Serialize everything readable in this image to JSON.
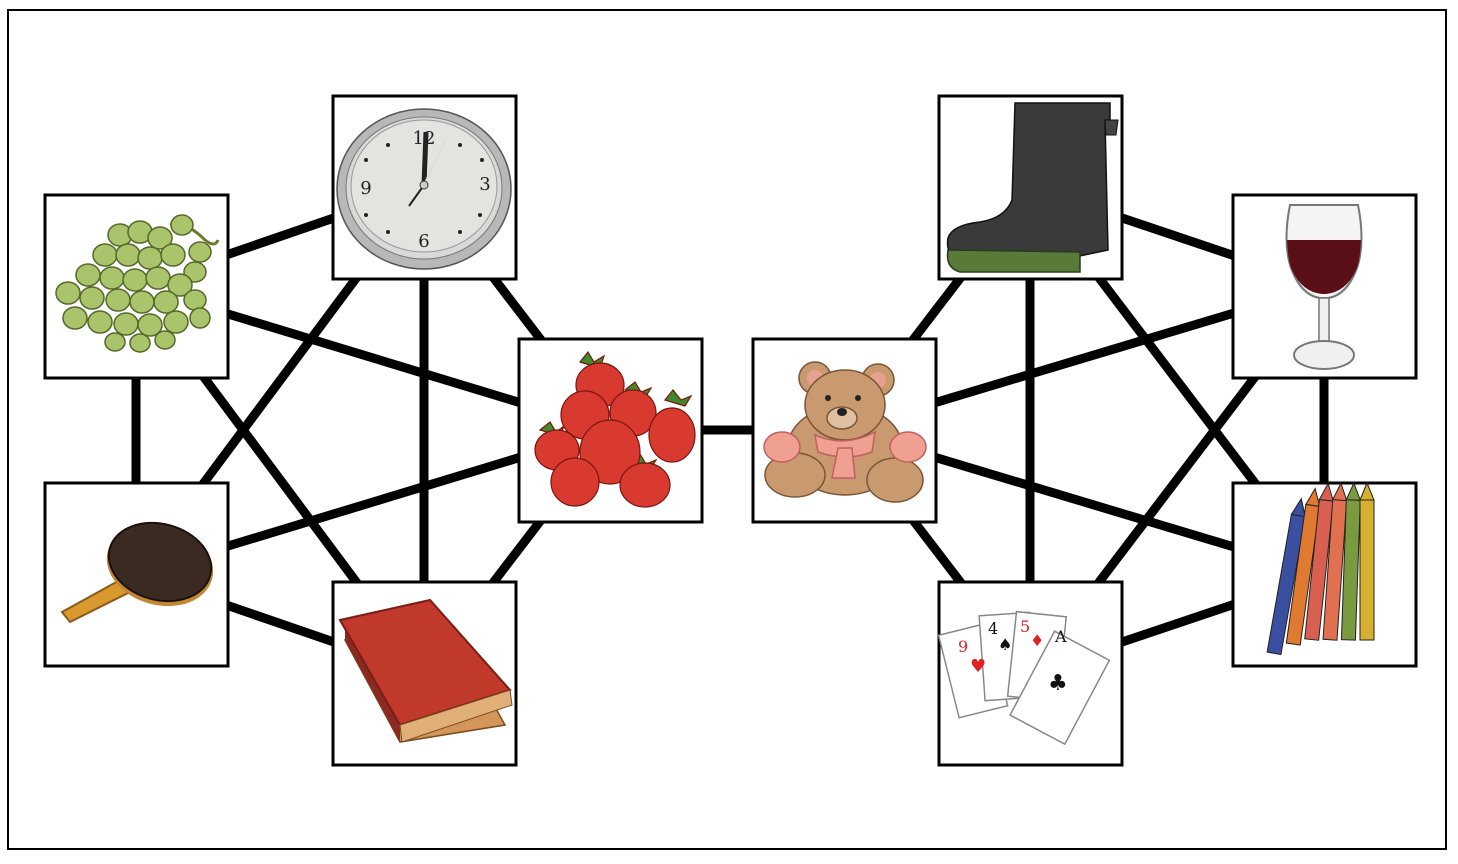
{
  "nodes": [
    {
      "id": "grapes",
      "icon": "grapes-icon"
    },
    {
      "id": "clock",
      "icon": "clock-icon"
    },
    {
      "id": "paddle",
      "icon": "ping-pong-paddle-icon"
    },
    {
      "id": "book",
      "icon": "book-icon"
    },
    {
      "id": "strawberries",
      "icon": "strawberries-icon"
    },
    {
      "id": "teddy",
      "icon": "teddy-bear-icon"
    },
    {
      "id": "boot",
      "icon": "rain-boot-icon"
    },
    {
      "id": "wine",
      "icon": "wine-glass-icon"
    },
    {
      "id": "cards",
      "icon": "playing-cards-icon"
    },
    {
      "id": "crayons",
      "icon": "crayons-icon"
    }
  ],
  "edges": [
    [
      "grapes",
      "clock"
    ],
    [
      "grapes",
      "paddle"
    ],
    [
      "grapes",
      "book"
    ],
    [
      "grapes",
      "strawberries"
    ],
    [
      "clock",
      "paddle"
    ],
    [
      "clock",
      "book"
    ],
    [
      "clock",
      "strawberries"
    ],
    [
      "paddle",
      "book"
    ],
    [
      "paddle",
      "strawberries"
    ],
    [
      "book",
      "strawberries"
    ],
    [
      "strawberries",
      "teddy"
    ],
    [
      "teddy",
      "boot"
    ],
    [
      "teddy",
      "wine"
    ],
    [
      "teddy",
      "cards"
    ],
    [
      "teddy",
      "crayons"
    ],
    [
      "boot",
      "wine"
    ],
    [
      "boot",
      "cards"
    ],
    [
      "boot",
      "crayons"
    ],
    [
      "wine",
      "cards"
    ],
    [
      "wine",
      "crayons"
    ],
    [
      "cards",
      "crayons"
    ]
  ],
  "clock_face": {
    "n12": "12",
    "n3": "3",
    "n6": "6",
    "n9": "9"
  },
  "cards": {
    "c1": "9",
    "c2": "4",
    "c3": "5",
    "c4": "A"
  },
  "colors": {
    "line": "#000000",
    "grape": "#a9c46a",
    "strawberry": "#d93a30",
    "book": "#c0392b",
    "wine": "#5a0e16",
    "boot": "#3a3a3a",
    "teddy": "#c99a70",
    "paddle": "#3b2a22"
  }
}
